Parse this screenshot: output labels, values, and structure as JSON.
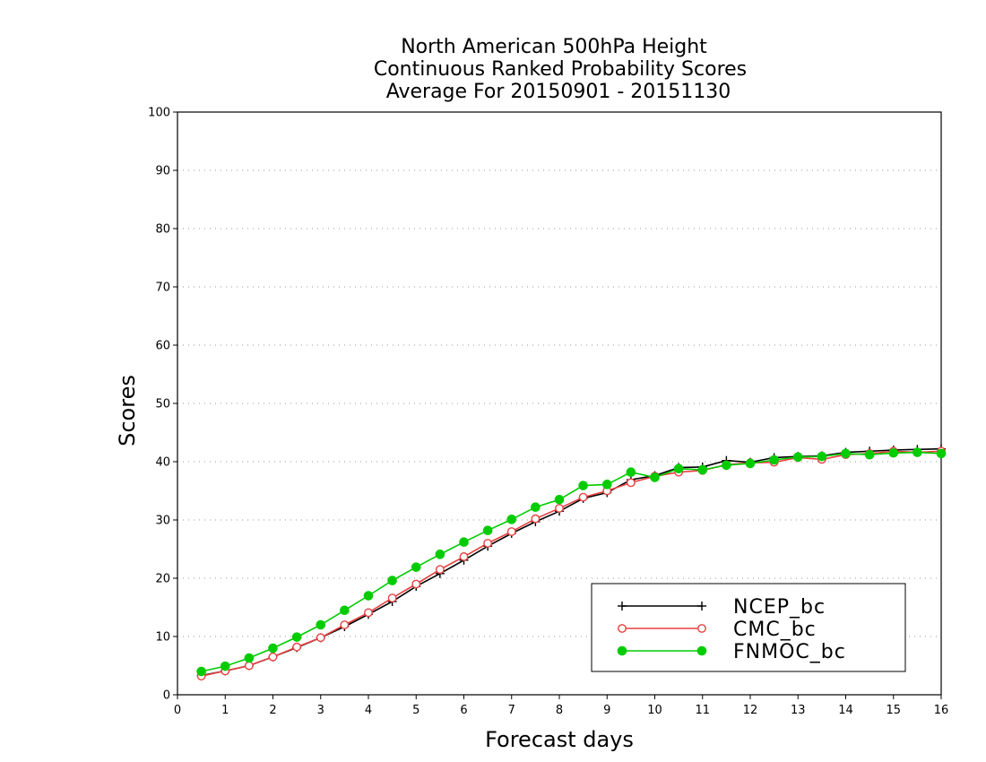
{
  "chart_data": {
    "type": "line",
    "title": [
      "North American 500hPa Height",
      "Continuous Ranked Probability Scores",
      "Average For 20150901 - 20151130"
    ],
    "xlabel": "Forecast days",
    "ylabel": "Scores",
    "xlim": [
      0,
      16
    ],
    "ylim": [
      0,
      100
    ],
    "xticks": [
      0,
      1,
      2,
      3,
      4,
      5,
      6,
      7,
      8,
      9,
      10,
      11,
      12,
      13,
      14,
      15,
      16
    ],
    "yticks": [
      0,
      10,
      20,
      30,
      40,
      50,
      60,
      70,
      80,
      90,
      100
    ],
    "grid": "horizontal dotted",
    "legend_position": "bottom-right",
    "x": [
      0.5,
      1,
      1.5,
      2,
      2.5,
      3,
      3.5,
      4,
      4.5,
      5,
      5.5,
      6,
      6.5,
      7,
      7.5,
      8,
      8.5,
      9,
      9.5,
      10,
      10.5,
      11,
      11.5,
      12,
      12.5,
      13,
      13.5,
      14,
      14.5,
      15,
      15.5,
      16
    ],
    "series": [
      {
        "name": "NCEP_bc",
        "color": "#000000",
        "marker": "plus",
        "values": [
          3.3,
          4.1,
          5.0,
          6.5,
          8.1,
          9.8,
          11.7,
          13.8,
          16.0,
          18.6,
          20.8,
          23.1,
          25.5,
          27.7,
          29.7,
          31.5,
          33.7,
          34.7,
          36.9,
          37.6,
          39.0,
          39.1,
          40.2,
          39.9,
          40.7,
          40.9,
          41.0,
          41.6,
          41.8,
          42.0,
          42.1,
          42.2
        ]
      },
      {
        "name": "CMC_bc",
        "color": "#e84040",
        "marker": "open-circle",
        "values": [
          3.2,
          4.1,
          5.0,
          6.5,
          8.2,
          9.8,
          12.0,
          14.1,
          16.6,
          19.0,
          21.5,
          23.7,
          26.0,
          28.0,
          30.2,
          32.0,
          33.9,
          35.0,
          36.4,
          37.5,
          38.2,
          38.5,
          39.5,
          39.8,
          39.9,
          40.7,
          40.4,
          41.2,
          41.4,
          41.8,
          41.6,
          41.8
        ]
      },
      {
        "name": "FNMOC_bc",
        "color": "#00cc00",
        "marker": "filled-circle",
        "values": [
          4.0,
          4.9,
          6.3,
          8.0,
          9.9,
          12.0,
          14.5,
          17.0,
          19.6,
          21.9,
          24.1,
          26.2,
          28.2,
          30.1,
          32.2,
          33.5,
          35.9,
          36.1,
          38.2,
          37.3,
          38.8,
          38.6,
          39.4,
          39.7,
          40.3,
          40.8,
          40.9,
          41.4,
          41.2,
          41.5,
          41.6,
          41.4
        ]
      }
    ]
  }
}
